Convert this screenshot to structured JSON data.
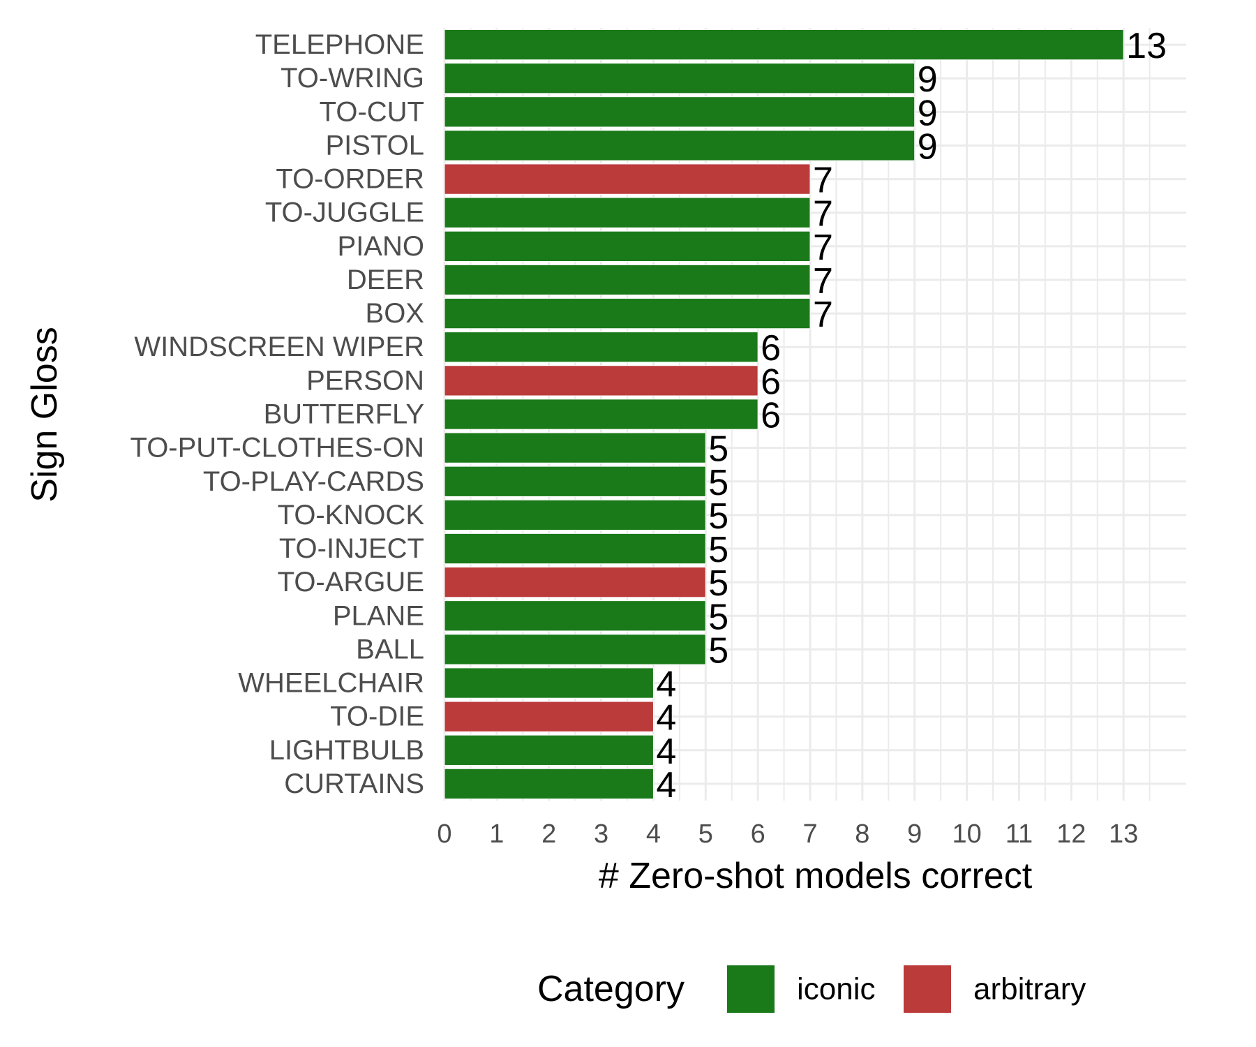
{
  "chart_data": {
    "type": "bar",
    "orientation": "horizontal",
    "title": "",
    "xlabel": "# Zero-shot models correct",
    "ylabel": "Sign Gloss",
    "xlim": [
      0,
      14.2
    ],
    "x_ticks": [
      0,
      1,
      2,
      3,
      4,
      5,
      6,
      7,
      8,
      9,
      10,
      11,
      12,
      13
    ],
    "grid": true,
    "legend": {
      "title": "Category",
      "placement": "bottom",
      "entries": [
        {
          "label": "iconic",
          "color": "#1a7a1a"
        },
        {
          "label": "arbitrary",
          "color": "#bb3a3a"
        }
      ]
    },
    "categories": [
      "TELEPHONE",
      "TO-WRING",
      "TO-CUT",
      "PISTOL",
      "TO-ORDER",
      "TO-JUGGLE",
      "PIANO",
      "DEER",
      "BOX",
      "WINDSCREEN WIPER",
      "PERSON",
      "BUTTERFLY",
      "TO-PUT-CLOTHES-ON",
      "TO-PLAY-CARDS",
      "TO-KNOCK",
      "TO-INJECT",
      "TO-ARGUE",
      "PLANE",
      "BALL",
      "WHEELCHAIR",
      "TO-DIE",
      "LIGHTBULB",
      "CURTAINS"
    ],
    "values": [
      13,
      9,
      9,
      9,
      7,
      7,
      7,
      7,
      7,
      6,
      6,
      6,
      5,
      5,
      5,
      5,
      5,
      5,
      5,
      4,
      4,
      4,
      4
    ],
    "category_group": [
      "iconic",
      "iconic",
      "iconic",
      "iconic",
      "arbitrary",
      "iconic",
      "iconic",
      "iconic",
      "iconic",
      "iconic",
      "arbitrary",
      "iconic",
      "iconic",
      "iconic",
      "iconic",
      "iconic",
      "arbitrary",
      "iconic",
      "iconic",
      "iconic",
      "arbitrary",
      "iconic",
      "iconic"
    ]
  }
}
